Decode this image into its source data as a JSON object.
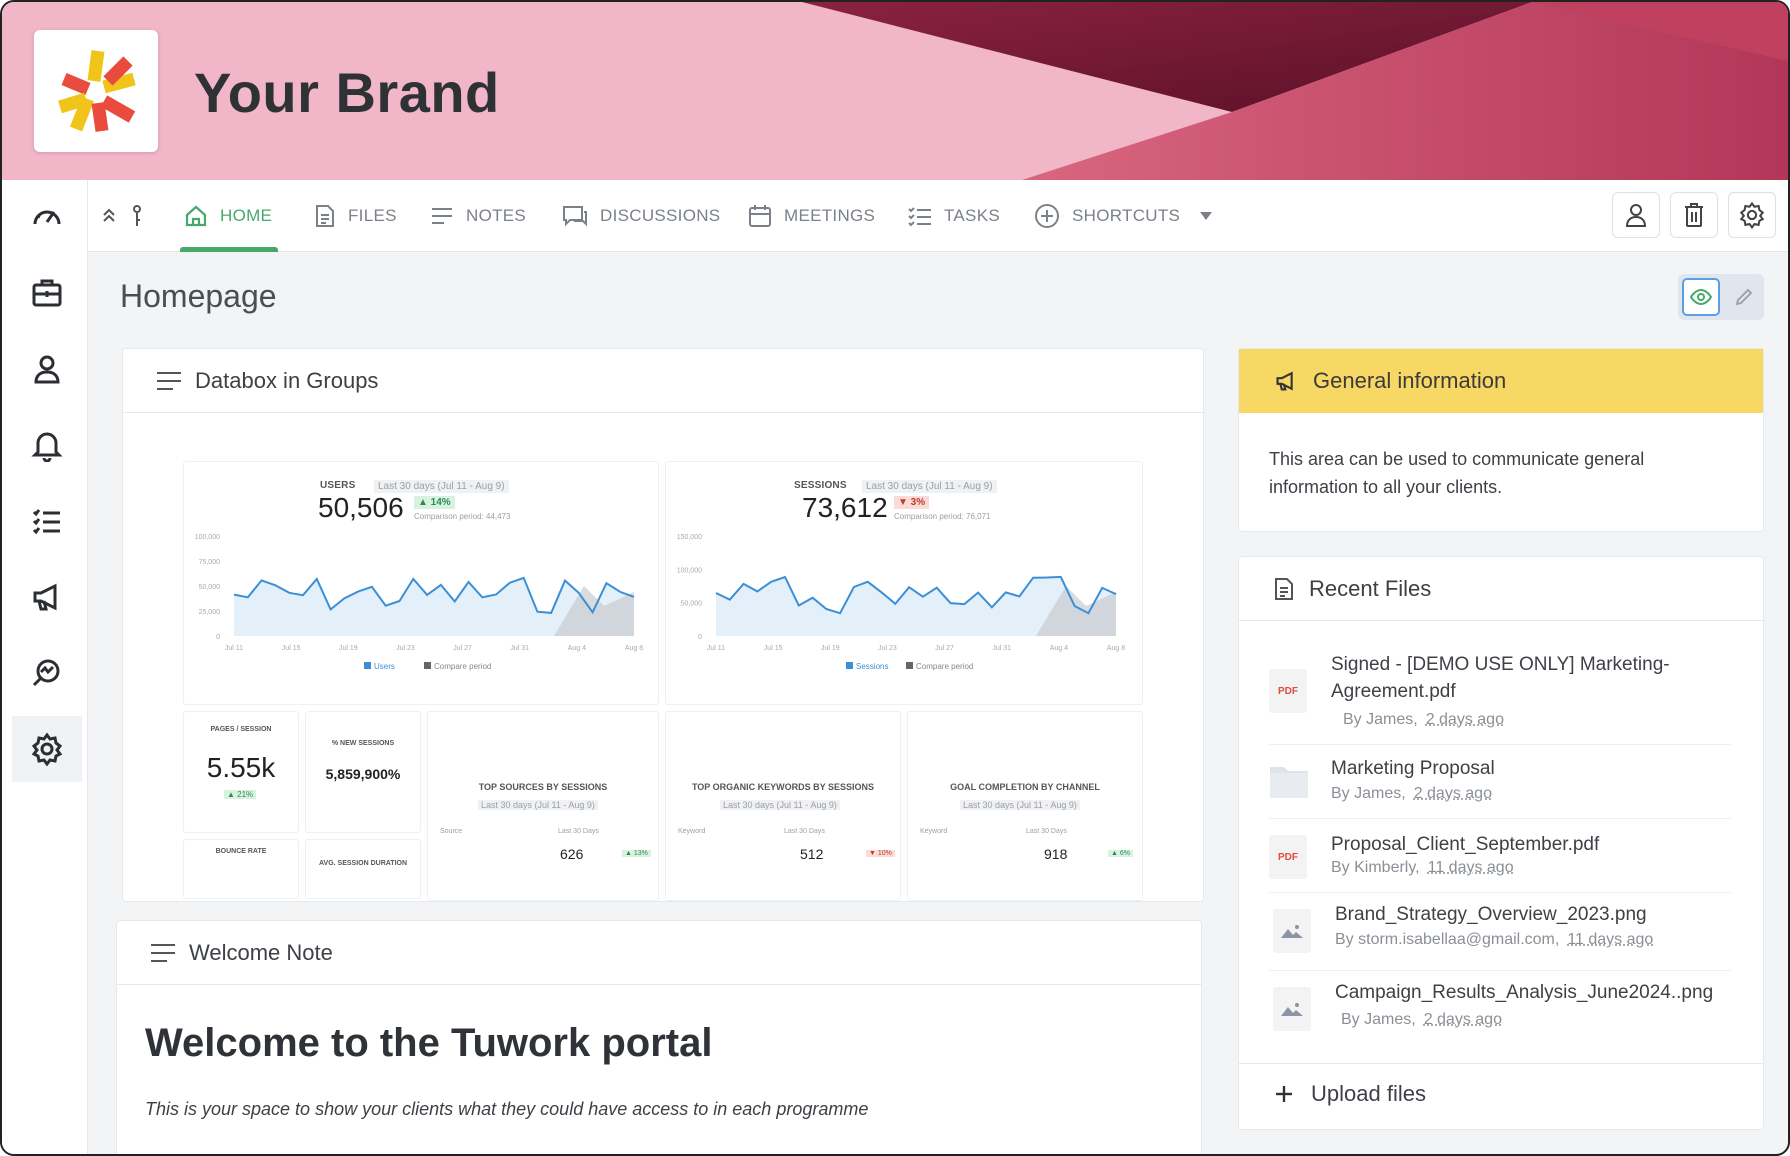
{
  "brand": {
    "title": "Your Brand"
  },
  "nav": {
    "tabs": [
      {
        "label": "HOME",
        "icon": "home-icon"
      },
      {
        "label": "FILES",
        "icon": "file-icon"
      },
      {
        "label": "NOTES",
        "icon": "notes-icon"
      },
      {
        "label": "DISCUSSIONS",
        "icon": "chat-icon"
      },
      {
        "label": "MEETINGS",
        "icon": "calendar-icon"
      },
      {
        "label": "TASKS",
        "icon": "tasks-icon"
      },
      {
        "label": "SHORTCUTS",
        "icon": "plus-circle-icon"
      }
    ],
    "active": "HOME"
  },
  "rail": [
    "gauge-icon",
    "briefcase-icon",
    "user-icon",
    "bell-icon",
    "list-icon",
    "megaphone-icon",
    "analytics-icon",
    "gear-icon"
  ],
  "page": {
    "title": "Homepage"
  },
  "databox": {
    "title": "Databox in Groups",
    "users": {
      "label": "USERS",
      "value": "50,506",
      "change": "▲ 14%",
      "range": "Last 30 days (Jul 11 - Aug 9)",
      "compare": "Comparison period: 44,473",
      "yticks": [
        "100,000",
        "75,000",
        "50,000",
        "25,000",
        "0"
      ],
      "xticks": [
        "Jul 11",
        "Jul 15",
        "Jul 19",
        "Jul 23",
        "Jul 27",
        "Jul 31",
        "Aug 4",
        "Aug 8"
      ],
      "legend": [
        "Users",
        "Compare period"
      ]
    },
    "sessions": {
      "label": "SESSIONS",
      "value": "73,612",
      "change": "▼ 3%",
      "range": "Last 30 days (Jul 11 - Aug 9)",
      "compare": "Comparison period: 76,071",
      "yticks": [
        "150,000",
        "100,000",
        "50,000",
        "0"
      ],
      "xticks": [
        "Jul 11",
        "Jul 15",
        "Jul 19",
        "Jul 23",
        "Jul 27",
        "Jul 31",
        "Aug 4",
        "Aug 8"
      ],
      "legend": [
        "Sessions",
        "Compare period"
      ]
    },
    "pages_session": {
      "label": "PAGES / SESSION",
      "value": "5.55k",
      "change": "▲ 21%"
    },
    "new_sessions": {
      "label": "% NEW SESSIONS",
      "value": "5,859,900%"
    },
    "top_sources": {
      "label": "TOP SOURCES BY SESSIONS",
      "range": "Last 30 days (Jul 11 - Aug 9)",
      "col1": "Source",
      "col2": "Last 30 Days",
      "value": "626",
      "change": "▲ 13%"
    },
    "top_keywords": {
      "label": "TOP ORGANIC KEYWORDS BY SESSIONS",
      "range": "Last 30 days (Jul 11 - Aug 9)",
      "col1": "Keyword",
      "col2": "Last 30 Days",
      "value": "512",
      "change": "▼ 10%"
    },
    "goal_completion": {
      "label": "GOAL COMPLETION BY CHANNEL",
      "range": "Last 30 days (Jul 11 - Aug 9)",
      "col1": "Keyword",
      "col2": "Last 30 Days",
      "value": "918",
      "change": "▲ 6%"
    },
    "bounce": {
      "label": "BOUNCE RATE"
    },
    "avg_session": {
      "label": "AVG. SESSION DURATION"
    }
  },
  "welcome": {
    "title": "Welcome Note",
    "heading": "Welcome to the Tuwork portal",
    "body": "This is your space to show your clients what they could have access to in each programme"
  },
  "general": {
    "title": "General information",
    "body": "This area can be used to communicate general information to all your clients."
  },
  "recent_files": {
    "title": "Recent Files",
    "files": [
      {
        "name_line1": "Signed - [DEMO USE ONLY] Marketing-",
        "name_line2": "Agreement.pdf",
        "by": "By James,",
        "ago": "2 days ago",
        "type": "pdf"
      },
      {
        "name_line1": "Marketing Proposal",
        "name_line2": "",
        "by": "By James,",
        "ago": "2 days ago",
        "type": "folder"
      },
      {
        "name_line1": "Proposal_Client_September.pdf",
        "name_line2": "",
        "by": "By Kimberly,",
        "ago": "11 days ago",
        "type": "pdf"
      },
      {
        "name_line1": "Brand_Strategy_Overview_2023.png",
        "name_line2": "",
        "by": "By storm.isabellaa@gmail.com,",
        "ago": "11 days ago",
        "type": "image"
      },
      {
        "name_line1": "Campaign_Results_Analysis_June2024..png",
        "name_line2": "",
        "by": "By James,",
        "ago": "2 days ago",
        "type": "image"
      }
    ],
    "upload": "Upload files",
    "pdf_badge": "PDF"
  },
  "colors": {
    "accent": "#46a86a",
    "banner": "#f1b6c8",
    "yellow": "#f7d865",
    "chart_line": "#3c8fd6"
  }
}
